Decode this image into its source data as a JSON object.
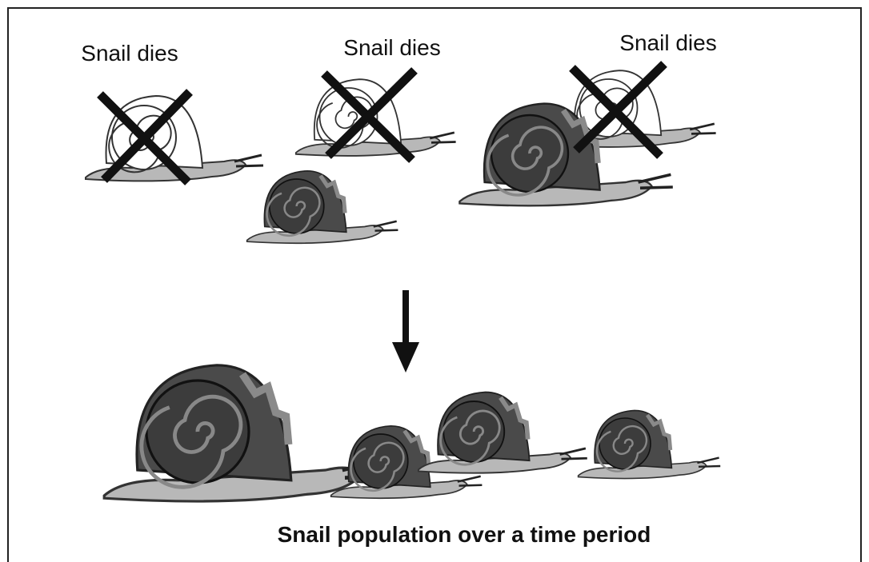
{
  "labels": [
    "Snail dies",
    "Snail dies",
    "Snail dies"
  ],
  "caption": "Snail population over a time period"
}
